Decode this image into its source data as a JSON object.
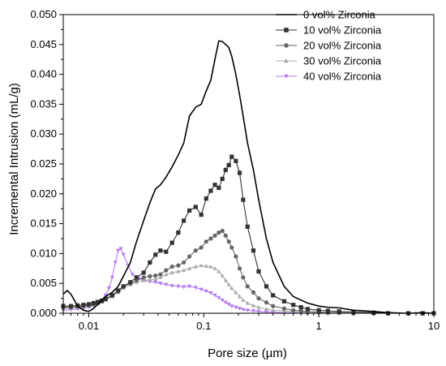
{
  "chart_data": {
    "type": "line",
    "title": "",
    "xlabel": "Pore size (µm)",
    "ylabel": "Incremental Intrusion (mL/g)",
    "x_scale": "log",
    "xlim": [
      0.006,
      10
    ],
    "ylim": [
      0,
      0.05
    ],
    "x_ticks": [
      0.01,
      0.1,
      1,
      10
    ],
    "x_tick_labels": [
      "0.01",
      "0.1",
      "1",
      "10"
    ],
    "y_ticks": [
      0,
      0.005,
      0.01,
      0.015,
      0.02,
      0.025,
      0.03,
      0.035,
      0.04,
      0.045,
      0.05
    ],
    "y_tick_labels": [
      "0.000",
      "0.005",
      "0.010",
      "0.015",
      "0.020",
      "0.025",
      "0.030",
      "0.035",
      "0.040",
      "0.045",
      "0.050"
    ],
    "grid": false,
    "legend_position": "top-right",
    "series": [
      {
        "name": "0 vol% Zirconia",
        "color": "#000000",
        "marker": "none",
        "x": [
          0.006,
          0.0065,
          0.007,
          0.008,
          0.009,
          0.01,
          0.011,
          0.012,
          0.013,
          0.014,
          0.016,
          0.018,
          0.02,
          0.023,
          0.026,
          0.03,
          0.034,
          0.038,
          0.042,
          0.047,
          0.053,
          0.06,
          0.067,
          0.075,
          0.085,
          0.095,
          0.105,
          0.115,
          0.125,
          0.135,
          0.145,
          0.155,
          0.165,
          0.175,
          0.19,
          0.205,
          0.22,
          0.24,
          0.27,
          0.3,
          0.35,
          0.4,
          0.5,
          0.6,
          0.7,
          0.8,
          1.0,
          1.2,
          1.5,
          2,
          3,
          4,
          6,
          8,
          10
        ],
        "values": [
          0.0032,
          0.0038,
          0.0032,
          0.0012,
          0.0005,
          0.0003,
          0.0008,
          0.0015,
          0.0022,
          0.0028,
          0.0035,
          0.0045,
          0.0062,
          0.0085,
          0.012,
          0.0155,
          0.0185,
          0.0208,
          0.0215,
          0.0228,
          0.0245,
          0.0265,
          0.0285,
          0.033,
          0.0345,
          0.035,
          0.0372,
          0.039,
          0.0425,
          0.0456,
          0.0455,
          0.045,
          0.0445,
          0.043,
          0.04,
          0.0365,
          0.033,
          0.0285,
          0.024,
          0.019,
          0.0125,
          0.0085,
          0.0045,
          0.0028,
          0.0022,
          0.0017,
          0.0012,
          0.001,
          0.0009,
          0.0005,
          0.0003,
          0.0001,
          0.0,
          0.0001,
          0.0
        ]
      },
      {
        "name": "10 vol% Zirconia",
        "color": "#333333",
        "marker": "square",
        "x": [
          0.006,
          0.007,
          0.008,
          0.009,
          0.01,
          0.011,
          0.012,
          0.013,
          0.014,
          0.016,
          0.018,
          0.02,
          0.023,
          0.026,
          0.03,
          0.034,
          0.038,
          0.042,
          0.047,
          0.053,
          0.06,
          0.067,
          0.075,
          0.085,
          0.095,
          0.105,
          0.115,
          0.125,
          0.135,
          0.145,
          0.155,
          0.165,
          0.175,
          0.19,
          0.205,
          0.22,
          0.24,
          0.27,
          0.3,
          0.35,
          0.4,
          0.5,
          0.6,
          0.7,
          0.8,
          1.0,
          1.2,
          1.5,
          2,
          3,
          4,
          6,
          8,
          10
        ],
        "values": [
          0.0012,
          0.0012,
          0.0013,
          0.0014,
          0.0015,
          0.0017,
          0.0019,
          0.0021,
          0.0024,
          0.003,
          0.0038,
          0.0045,
          0.0052,
          0.006,
          0.0068,
          0.0085,
          0.0098,
          0.0105,
          0.0103,
          0.0118,
          0.0135,
          0.0155,
          0.0172,
          0.0178,
          0.0165,
          0.0192,
          0.0205,
          0.0215,
          0.021,
          0.0225,
          0.024,
          0.0248,
          0.0262,
          0.0255,
          0.0235,
          0.019,
          0.0145,
          0.0105,
          0.007,
          0.0045,
          0.003,
          0.002,
          0.0014,
          0.001,
          0.0007,
          0.0005,
          0.0004,
          0.0003,
          0.0002,
          0.0001,
          0.0,
          0.0,
          0.0,
          0.0
        ]
      },
      {
        "name": "20 vol% Zirconia",
        "color": "#666666",
        "marker": "circle",
        "x": [
          0.006,
          0.007,
          0.008,
          0.009,
          0.01,
          0.011,
          0.012,
          0.013,
          0.014,
          0.016,
          0.018,
          0.02,
          0.023,
          0.026,
          0.03,
          0.034,
          0.038,
          0.042,
          0.047,
          0.053,
          0.06,
          0.067,
          0.075,
          0.085,
          0.095,
          0.105,
          0.115,
          0.125,
          0.135,
          0.145,
          0.155,
          0.165,
          0.175,
          0.19,
          0.205,
          0.22,
          0.24,
          0.27,
          0.3,
          0.35,
          0.4,
          0.5,
          0.6,
          0.7,
          0.8,
          1.0,
          1.2,
          1.5,
          2,
          3,
          4,
          6,
          8,
          10
        ],
        "values": [
          0.001,
          0.001,
          0.0011,
          0.0012,
          0.0013,
          0.0015,
          0.0017,
          0.002,
          0.0024,
          0.003,
          0.0037,
          0.0045,
          0.005,
          0.0055,
          0.006,
          0.0062,
          0.0063,
          0.0065,
          0.0072,
          0.0078,
          0.008,
          0.0085,
          0.0095,
          0.0105,
          0.011,
          0.012,
          0.0125,
          0.013,
          0.0135,
          0.0138,
          0.013,
          0.012,
          0.011,
          0.0095,
          0.0075,
          0.006,
          0.0045,
          0.0035,
          0.0025,
          0.0018,
          0.0012,
          0.0008,
          0.0005,
          0.0004,
          0.0003,
          0.0002,
          0.0001,
          0.0001,
          0.0,
          0.0,
          0.0,
          0.0,
          0.0,
          0.0
        ]
      },
      {
        "name": "30 vol% Zirconia",
        "color": "#aaaaaa",
        "marker": "triangle-up",
        "x": [
          0.006,
          0.007,
          0.008,
          0.009,
          0.01,
          0.011,
          0.012,
          0.013,
          0.014,
          0.016,
          0.018,
          0.02,
          0.023,
          0.026,
          0.03,
          0.034,
          0.038,
          0.042,
          0.047,
          0.053,
          0.06,
          0.067,
          0.075,
          0.085,
          0.095,
          0.105,
          0.115,
          0.125,
          0.135,
          0.145,
          0.155,
          0.165,
          0.175,
          0.19,
          0.205,
          0.22,
          0.24,
          0.27,
          0.3,
          0.35,
          0.4,
          0.5,
          0.6,
          0.7,
          0.8,
          1.0,
          1.2,
          1.5,
          2,
          3,
          4,
          6,
          8,
          10
        ],
        "values": [
          0.0008,
          0.0009,
          0.001,
          0.0011,
          0.0012,
          0.0014,
          0.0016,
          0.0019,
          0.0022,
          0.0028,
          0.0035,
          0.0042,
          0.0048,
          0.0052,
          0.0055,
          0.0056,
          0.0057,
          0.006,
          0.0065,
          0.0068,
          0.007,
          0.0072,
          0.0075,
          0.0078,
          0.008,
          0.0079,
          0.0078,
          0.0075,
          0.007,
          0.0063,
          0.0055,
          0.0048,
          0.0042,
          0.0035,
          0.0028,
          0.0022,
          0.0017,
          0.0013,
          0.001,
          0.0007,
          0.0005,
          0.0004,
          0.0003,
          0.0002,
          0.0001,
          0.0001,
          0.0,
          0.0,
          0.0,
          0.0,
          0.0,
          0.0,
          0.0,
          0.0
        ]
      },
      {
        "name": "40 vol% Zirconia",
        "color": "#b57cf0",
        "marker": "triangle-down",
        "x": [
          0.006,
          0.007,
          0.008,
          0.009,
          0.01,
          0.011,
          0.012,
          0.013,
          0.014,
          0.015,
          0.016,
          0.017,
          0.018,
          0.019,
          0.02,
          0.022,
          0.024,
          0.027,
          0.03,
          0.034,
          0.038,
          0.042,
          0.047,
          0.053,
          0.06,
          0.067,
          0.075,
          0.085,
          0.095,
          0.105,
          0.115,
          0.125,
          0.135,
          0.145,
          0.155,
          0.165,
          0.175,
          0.19,
          0.205,
          0.22,
          0.24,
          0.27,
          0.3,
          0.35,
          0.4,
          0.5,
          0.6,
          0.7,
          0.8,
          1.0,
          1.2,
          1.5,
          2,
          3,
          4,
          6,
          8,
          10
        ],
        "values": [
          0.0005,
          0.0006,
          0.0007,
          0.0008,
          0.001,
          0.0013,
          0.0016,
          0.0022,
          0.003,
          0.0042,
          0.006,
          0.0085,
          0.0105,
          0.0108,
          0.0098,
          0.008,
          0.0065,
          0.0058,
          0.0055,
          0.0053,
          0.0052,
          0.005,
          0.0048,
          0.0046,
          0.0045,
          0.0044,
          0.0045,
          0.0043,
          0.004,
          0.0037,
          0.0034,
          0.003,
          0.0026,
          0.0022,
          0.0018,
          0.0015,
          0.0012,
          0.001,
          0.0008,
          0.0006,
          0.0005,
          0.0004,
          0.0003,
          0.0002,
          0.0002,
          0.0001,
          0.0001,
          0.0,
          0.0,
          0.0,
          0.0,
          0.0,
          0.0,
          0.0,
          0.0,
          0.0,
          0.0,
          0.0
        ]
      }
    ]
  }
}
